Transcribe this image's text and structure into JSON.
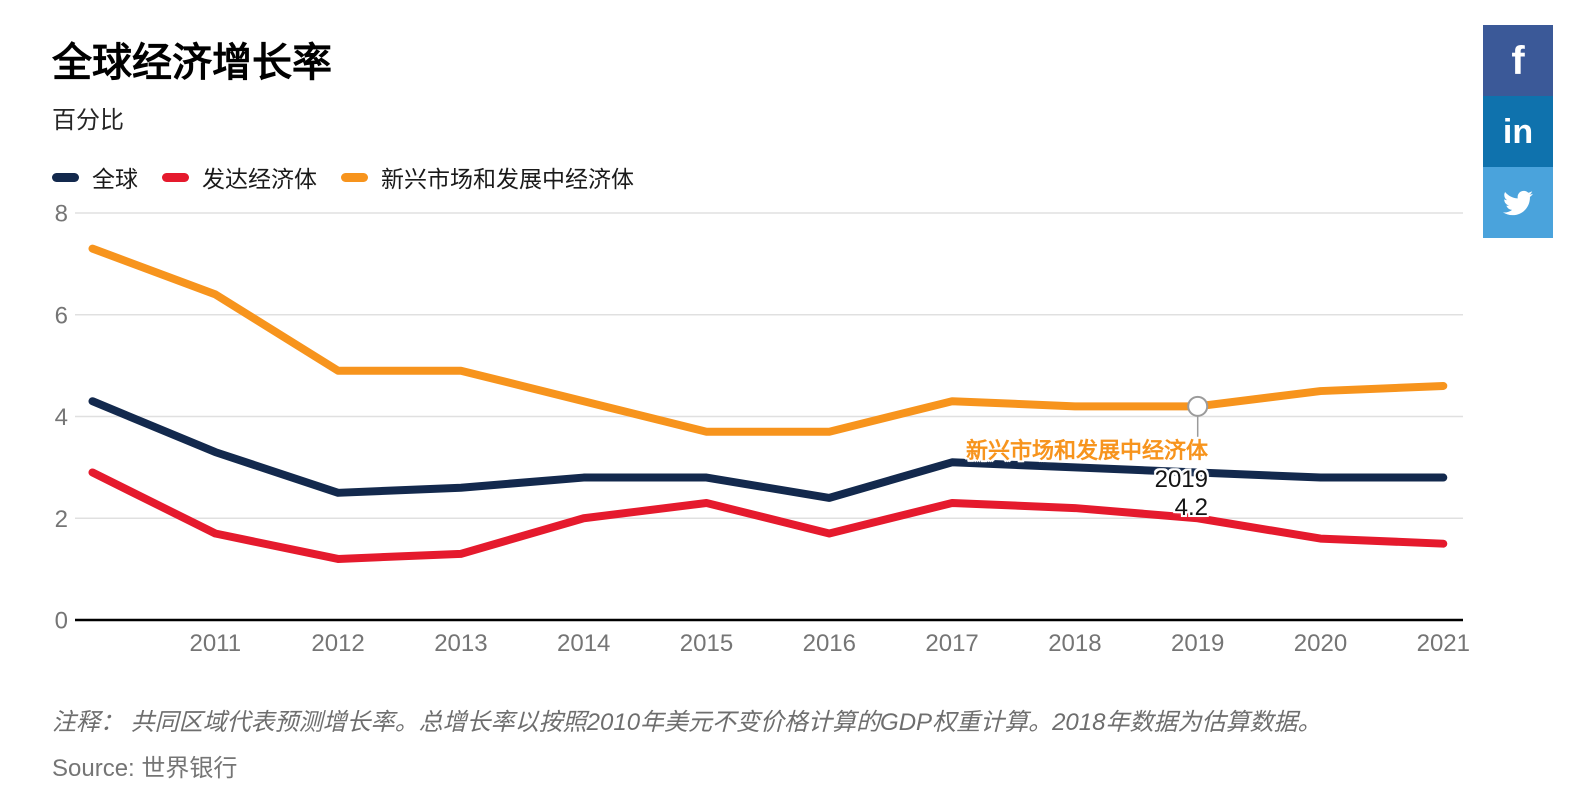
{
  "page": {
    "title": "全球经济增长率",
    "subtitle": "百分比"
  },
  "legend": [
    {
      "label": "全球",
      "color": "#13294d"
    },
    {
      "label": "发达经济体",
      "color": "#e51a2d"
    },
    {
      "label": "新兴市场和发展中经济体",
      "color": "#f7941d"
    }
  ],
  "chart_data": {
    "type": "line",
    "title": "全球经济增长率",
    "ylabel": "百分比",
    "x": [
      2010,
      2011,
      2012,
      2013,
      2014,
      2015,
      2016,
      2017,
      2018,
      2019,
      2020,
      2021
    ],
    "xtick_labels": [
      "2011",
      "2012",
      "2013",
      "2014",
      "2015",
      "2016",
      "2017",
      "2018",
      "2019",
      "2020",
      "2021"
    ],
    "yticks": [
      0,
      2,
      4,
      6,
      8
    ],
    "ylim": [
      0,
      8
    ],
    "grid": true,
    "legend_position": "top",
    "series": [
      {
        "name": "全球",
        "color": "#13294d",
        "values": [
          4.3,
          3.3,
          2.5,
          2.6,
          2.8,
          2.8,
          2.4,
          3.1,
          3.0,
          2.9,
          2.8,
          2.8
        ]
      },
      {
        "name": "发达经济体",
        "color": "#e51a2d",
        "values": [
          2.9,
          1.7,
          1.2,
          1.3,
          2.0,
          2.3,
          1.7,
          2.3,
          2.2,
          2.0,
          1.6,
          1.5
        ]
      },
      {
        "name": "新兴市场和发展中经济体",
        "color": "#f7941d",
        "values": [
          7.3,
          6.4,
          4.9,
          4.9,
          4.3,
          3.7,
          3.7,
          4.3,
          4.2,
          4.2,
          4.5,
          4.6
        ]
      }
    ],
    "colors": {
      "gridline": "#e0e0e0",
      "axis": "#000000",
      "tick_label": "#757575"
    }
  },
  "tooltip": {
    "series": "新兴市场和发展中经济体",
    "year": "2019",
    "value": "4.2",
    "series_index": 2
  },
  "note": {
    "prefix": "注释：",
    "text": " 共同区域代表预测增长率。总增长率以按照2010年美元不变价格计算的GDP权重计算。2018年数据为估算数据。"
  },
  "source": {
    "prefix": "Source:",
    "text": " 世界银行"
  },
  "social": [
    {
      "name": "facebook",
      "glyph": "f",
      "color": "#3b5998"
    },
    {
      "name": "linkedin",
      "glyph": "in",
      "color": "#0f72ad"
    },
    {
      "name": "twitter",
      "glyph": "",
      "color": "#4aa3dc"
    }
  ]
}
